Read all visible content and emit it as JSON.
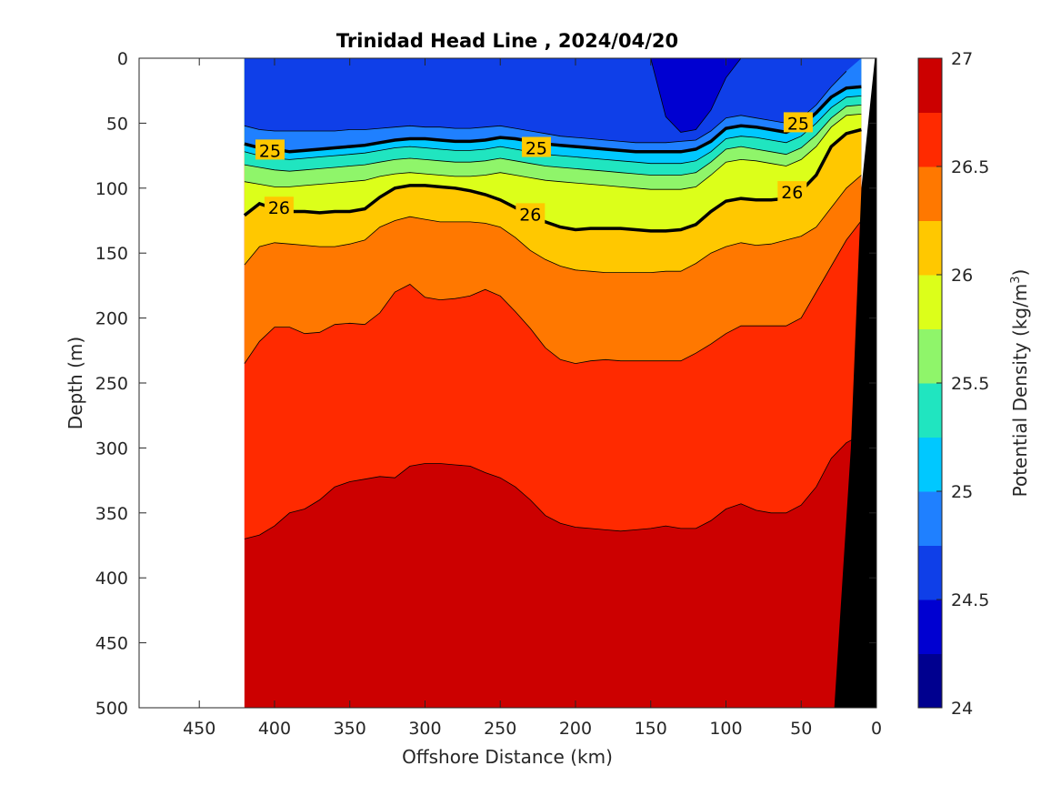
{
  "chart_data": {
    "type": "contour",
    "title": "Trinidad Head Line , 2024/04/20",
    "xlabel": "Offshore Distance (km)",
    "ylabel": "Depth (m)",
    "colorbar_label": "Potential Density (kg/m",
    "colorbar_label_sup": "3",
    "colorbar_label_tail": ")",
    "x_reversed": true,
    "y_reversed": true,
    "xlim": [
      490,
      0
    ],
    "ylim": [
      0,
      500
    ],
    "xticks": [
      "450",
      "400",
      "350",
      "300",
      "250",
      "200",
      "150",
      "100",
      "50",
      "0"
    ],
    "yticks": [
      "0",
      "50",
      "100",
      "150",
      "200",
      "250",
      "300",
      "350",
      "400",
      "450",
      "500"
    ],
    "cticks": [
      "24",
      "24.5",
      "25",
      "25.5",
      "26",
      "26.5",
      "27"
    ],
    "clim": [
      24,
      27
    ],
    "colormap": [
      "#00008f",
      "#0000d1",
      "#0f3fe8",
      "#1f80ff",
      "#00c8ff",
      "#20e5c0",
      "#8ff56a",
      "#dcff1a",
      "#ffc800",
      "#ff7800",
      "#ff2a00",
      "#cc0000"
    ],
    "section_start_km": 420,
    "seafloor_color": "#000000",
    "station_x_km": [
      420,
      410,
      400,
      390,
      380,
      370,
      360,
      350,
      340,
      330,
      320,
      310,
      300,
      290,
      280,
      270,
      260,
      250,
      240,
      230,
      220,
      210,
      200,
      190,
      180,
      170,
      160,
      150,
      140,
      130,
      120,
      110,
      100,
      90,
      80,
      70,
      60,
      50,
      40,
      30,
      20,
      10
    ],
    "isopycnals": [
      {
        "value": 24.25,
        "depths": [
          null,
          null,
          null,
          null,
          null,
          null,
          null,
          null,
          null,
          null,
          null,
          null,
          null,
          null,
          null,
          null,
          null,
          null,
          null,
          null,
          null,
          null,
          null,
          null,
          null,
          null,
          null,
          null,
          null,
          null,
          null,
          null,
          null,
          null,
          null,
          null,
          null,
          null,
          null,
          null,
          null,
          null
        ]
      },
      {
        "value": 24.5,
        "depths": [
          0,
          0,
          0,
          0,
          0,
          0,
          0,
          0,
          0,
          0,
          0,
          0,
          0,
          0,
          0,
          0,
          0,
          0,
          0,
          0,
          0,
          0,
          0,
          0,
          0,
          0,
          0,
          0,
          45,
          57,
          55,
          40,
          15,
          0,
          0,
          0,
          0,
          0,
          0,
          0,
          0,
          0
        ]
      },
      {
        "value": 24.75,
        "depths": [
          52,
          55,
          56,
          56,
          56,
          56,
          56,
          55,
          55,
          54,
          53,
          52,
          53,
          53,
          54,
          54,
          53,
          52,
          54,
          56,
          58,
          60,
          61,
          62,
          63,
          64,
          65,
          65,
          65,
          64,
          63,
          56,
          46,
          44,
          46,
          48,
          50,
          46,
          36,
          22,
          10,
          0
        ]
      },
      {
        "value": 25.0,
        "depths": [
          66,
          69,
          70,
          72,
          71,
          70,
          69,
          68,
          67,
          65,
          63,
          62,
          62,
          63,
          64,
          64,
          63,
          61,
          62,
          64,
          66,
          67,
          68,
          69,
          70,
          71,
          72,
          72,
          72,
          72,
          70,
          64,
          54,
          52,
          53,
          55,
          57,
          52,
          42,
          30,
          23,
          22
        ]
      },
      {
        "value": 25.25,
        "depths": [
          72,
          75,
          77,
          78,
          77,
          76,
          75,
          74,
          73,
          71,
          69,
          68,
          69,
          70,
          71,
          71,
          70,
          68,
          70,
          72,
          74,
          75,
          76,
          77,
          78,
          79,
          80,
          81,
          81,
          81,
          79,
          72,
          62,
          60,
          61,
          63,
          65,
          60,
          50,
          38,
          30,
          29
        ]
      },
      {
        "value": 25.5,
        "depths": [
          82,
          84,
          86,
          87,
          86,
          85,
          84,
          83,
          82,
          80,
          78,
          77,
          78,
          79,
          80,
          80,
          79,
          77,
          79,
          81,
          83,
          84,
          85,
          86,
          87,
          88,
          89,
          90,
          90,
          90,
          88,
          80,
          70,
          68,
          70,
          72,
          74,
          69,
          59,
          46,
          37,
          36
        ]
      },
      {
        "value": 25.75,
        "depths": [
          95,
          97,
          99,
          99,
          98,
          97,
          96,
          95,
          94,
          91,
          89,
          88,
          89,
          90,
          91,
          91,
          90,
          88,
          90,
          92,
          94,
          95,
          96,
          97,
          98,
          99,
          100,
          101,
          101,
          101,
          99,
          90,
          80,
          78,
          79,
          81,
          83,
          78,
          68,
          53,
          44,
          43
        ]
      },
      {
        "value": 26.0,
        "depths": [
          121,
          112,
          116,
          118,
          118,
          119,
          118,
          118,
          116,
          107,
          100,
          98,
          98,
          99,
          100,
          102,
          105,
          109,
          115,
          121,
          126,
          130,
          132,
          131,
          131,
          131,
          132,
          133,
          133,
          132,
          128,
          118,
          110,
          108,
          109,
          109,
          108,
          102,
          90,
          68,
          58,
          55
        ]
      },
      {
        "value": 26.25,
        "depths": [
          159,
          145,
          142,
          143,
          144,
          145,
          145,
          143,
          140,
          130,
          125,
          122,
          124,
          126,
          126,
          126,
          127,
          130,
          138,
          148,
          155,
          160,
          163,
          164,
          165,
          165,
          165,
          165,
          164,
          164,
          158,
          150,
          145,
          142,
          144,
          143,
          140,
          137,
          130,
          115,
          100,
          90
        ]
      },
      {
        "value": 26.5,
        "depths": [
          235,
          218,
          207,
          207,
          212,
          211,
          205,
          204,
          205,
          196,
          180,
          174,
          184,
          186,
          185,
          183,
          178,
          183,
          195,
          208,
          223,
          232,
          235,
          233,
          232,
          233,
          233,
          233,
          233,
          233,
          227,
          220,
          212,
          206,
          206,
          206,
          206,
          200,
          180,
          160,
          140,
          125
        ]
      },
      {
        "value": 26.75,
        "depths": [
          370,
          367,
          360,
          350,
          347,
          340,
          330,
          326,
          324,
          322,
          323,
          314,
          312,
          312,
          313,
          314,
          319,
          323,
          330,
          340,
          352,
          358,
          361,
          362,
          363,
          364,
          363,
          362,
          360,
          362,
          362,
          356,
          347,
          343,
          348,
          350,
          350,
          344,
          330,
          308,
          296,
          290
        ]
      }
    ],
    "contour_labels": [
      {
        "text": "25",
        "x_km": 403,
        "depth": 71
      },
      {
        "text": "25",
        "x_km": 226,
        "depth": 69
      },
      {
        "text": "25",
        "x_km": 52,
        "depth": 50
      },
      {
        "text": "26",
        "x_km": 397,
        "depth": 115
      },
      {
        "text": "26",
        "x_km": 230,
        "depth": 120
      },
      {
        "text": "26",
        "x_km": 56,
        "depth": 103
      }
    ]
  }
}
